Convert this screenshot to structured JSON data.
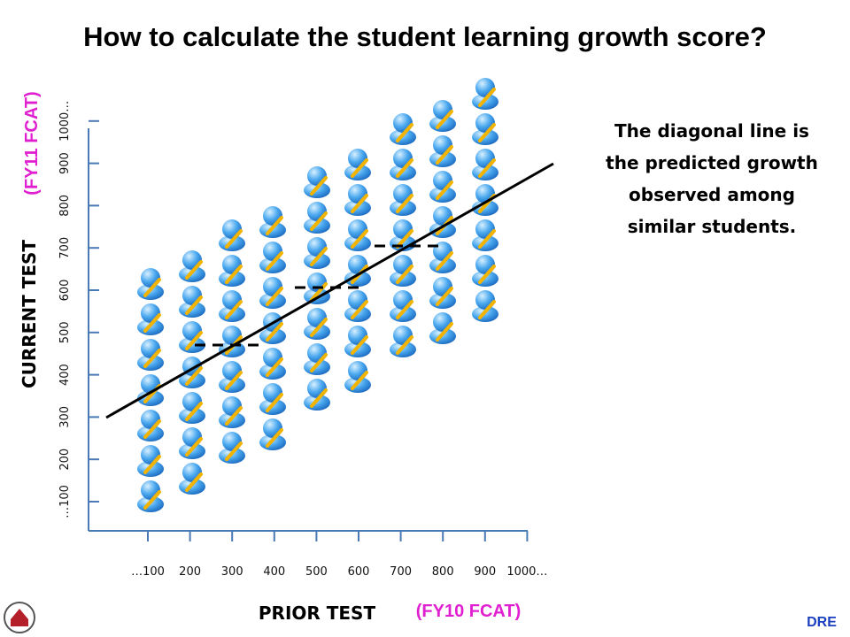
{
  "title": "How to calculate the student learning growth score?",
  "x_axis": {
    "label": "PRIOR TEST",
    "sublabel": "(FY10 FCAT)",
    "ticks": [
      "…100",
      "200",
      "300",
      "400",
      "500",
      "600",
      "700",
      "800",
      "900",
      "1000…"
    ]
  },
  "y_axis": {
    "label": "CURRENT TEST",
    "sublabel": "(FY11 FCAT)",
    "ticks": [
      "…100",
      "200",
      "300",
      "400",
      "500",
      "600",
      "700",
      "800",
      "900",
      "1000…"
    ]
  },
  "note": "The diagonal line is the predicted growth observed among similar students.",
  "footer": "DRE"
}
